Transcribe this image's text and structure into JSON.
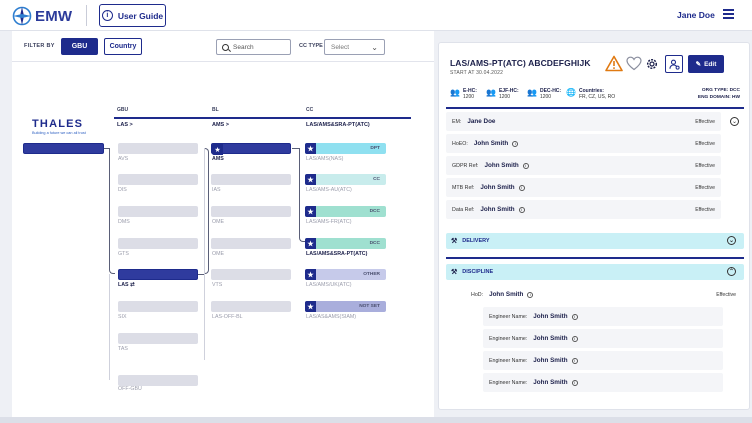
{
  "header": {
    "logo_text": "EMW",
    "user_guide_label": "User Guide",
    "user_guide_icon": "i",
    "user_name": "Jane Doe"
  },
  "filters": {
    "filter_by_label": "FILTER BY",
    "gbu_label": "GBU",
    "country_label": "Country",
    "search_placeholder": "Search",
    "cc_type_label": "CC TYPE",
    "cc_type_value": "Select"
  },
  "org_tree": {
    "brand_name": "THALES",
    "brand_tagline": "Building a future we can all trust",
    "columns": [
      {
        "header": "GBU",
        "selection": "LAS >"
      },
      {
        "header": "BL",
        "selection": "AMS >"
      },
      {
        "header": "CC",
        "selection": "LAS/AMS&SRA-PT(ATC)"
      }
    ],
    "gbu_nodes": [
      "AVS",
      "DIS",
      "DMS",
      "GTS",
      "LAS ⇄",
      "SIX",
      "TAS",
      "OFF-GBU"
    ],
    "bl_nodes": [
      "AMS",
      "IAS",
      "OME",
      "OME",
      "VTS",
      "LAS-OFF-BL"
    ],
    "cc_nodes": [
      {
        "label": "LAS/AMS(NAS)",
        "badge": "DPT",
        "color": "#8fe0f0"
      },
      {
        "label": "LAS/AMS-AU(ATC)",
        "badge": "CC",
        "color": "#c8ecec"
      },
      {
        "label": "LAS/AMS-FR(ATC)",
        "badge": "DCC",
        "color": "#9fe0d0"
      },
      {
        "label": "LAS/AMS&SRA-PT(ATC)",
        "badge": "DCC",
        "color": "#9fe0d0"
      },
      {
        "label": "LAS/AMS/UK(ATC)",
        "badge": "OTHER",
        "color": "#c6caea"
      },
      {
        "label": "LAS/AS&AMS(SIAM)",
        "badge": "NOT SET",
        "color": "#a9aedc"
      }
    ]
  },
  "detail": {
    "title": "LAS/AMS-PT(ATC) ABCDEFGHIJK",
    "start": "START AT 30.04.2022",
    "edit_label": "Edit",
    "stats": [
      {
        "label": "E-HC:",
        "value": "1200"
      },
      {
        "label": "EJF-HC:",
        "value": "1200"
      },
      {
        "label": "DEC-HC:",
        "value": "1200"
      },
      {
        "label": "Countries:",
        "value": "FR, CZ, US, RO"
      }
    ],
    "org_type": "ORG TYPE: DCC",
    "eng_domain": "ENG DOMAIN: HW",
    "roles": [
      {
        "key": "EM:",
        "name": "Jane Doe",
        "status": "Effective"
      },
      {
        "key": "HoEO:",
        "name": "John Smith",
        "status": "Effective"
      },
      {
        "key": "GDPR Ref:",
        "name": "John Smith",
        "status": "Effective"
      },
      {
        "key": "MTB Ref:",
        "name": "John Smith",
        "status": "Effective"
      },
      {
        "key": "Data Ref:",
        "name": "John Smith",
        "status": "Effective"
      }
    ],
    "delivery_label": "DELIVERY",
    "discipline_label": "DISCIPLINE",
    "hod": {
      "key": "HoD:",
      "name": "John Smith",
      "status": "Effective"
    },
    "engineers": [
      {
        "key": "Engineer Name:",
        "name": "John Smith"
      },
      {
        "key": "Engineer Name:",
        "name": "John Smith"
      },
      {
        "key": "Engineer Name:",
        "name": "John Smith"
      },
      {
        "key": "Engineer Name:",
        "name": "John Smith"
      }
    ]
  }
}
